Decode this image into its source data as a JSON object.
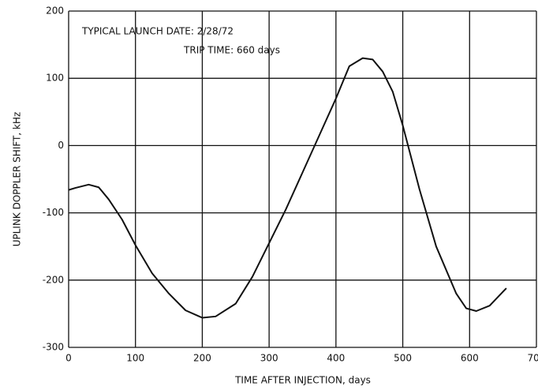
{
  "chart_data": {
    "type": "line",
    "annotations": [
      "TYPICAL LAUNCH DATE:  2/28/72",
      "TRIP TIME:  660 days"
    ],
    "xlabel": "TIME AFTER INJECTION, days",
    "ylabel": "UPLINK DOPPLER SHIFT, kHz",
    "x": [
      0,
      10,
      30,
      45,
      60,
      80,
      100,
      125,
      150,
      175,
      200,
      220,
      250,
      275,
      300,
      325,
      350,
      375,
      400,
      420,
      440,
      455,
      470,
      485,
      500,
      525,
      550,
      580,
      595,
      610,
      630,
      655
    ],
    "series": [
      {
        "name": "Uplink doppler shift",
        "color": "#111111",
        "values": [
          -66,
          -63,
          -58,
          -62,
          -80,
          -110,
          -148,
          -190,
          -220,
          -245,
          -256,
          -254,
          -235,
          -195,
          -145,
          -95,
          -40,
          15,
          70,
          118,
          130,
          128,
          110,
          80,
          30,
          -65,
          -150,
          -220,
          -242,
          -246,
          -238,
          -212
        ]
      }
    ],
    "xlim": [
      0,
      700
    ],
    "xticks": [
      0,
      100,
      200,
      300,
      400,
      500,
      600,
      700
    ],
    "ylim": [
      -300,
      200
    ],
    "yticks": [
      -300,
      -200,
      -100,
      0,
      100,
      200
    ],
    "grid": true
  }
}
